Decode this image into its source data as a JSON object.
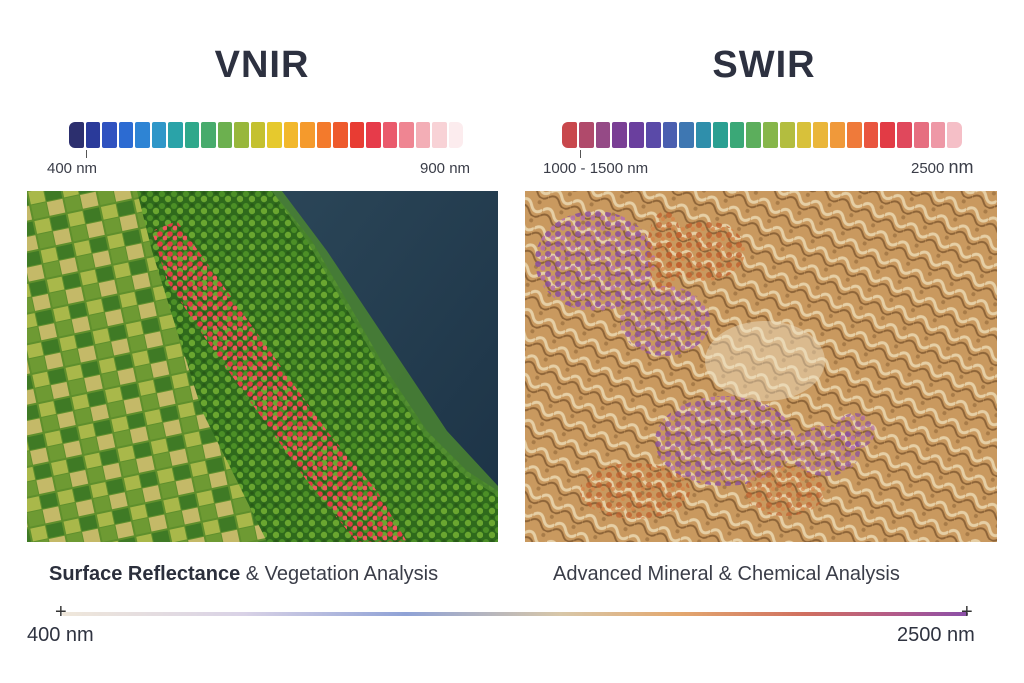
{
  "vnir": {
    "title": "VNIR",
    "scale_min": "400 nm",
    "scale_max": "900 nm",
    "colors": [
      "#2c2f6e",
      "#2a3a9a",
      "#2f52c0",
      "#2c6bd2",
      "#2e84d4",
      "#2f97c8",
      "#2aa3a8",
      "#2fa88b",
      "#47ab6c",
      "#6cb04f",
      "#98b73b",
      "#c4c12f",
      "#e6c92d",
      "#f2b82c",
      "#f59a2c",
      "#f37a2c",
      "#ee5a2c",
      "#e83c33",
      "#e63b4a",
      "#ea5a6c",
      "#ef8592",
      "#f3aeb6",
      "#f8d2d6",
      "#fcecee"
    ]
  },
  "swir": {
    "title": "SWIR",
    "scale_min": "1000 - 1500 nm",
    "scale_max_value": "2500",
    "scale_max_unit": "nm",
    "colors": [
      "#c8474c",
      "#b04a6b",
      "#954a86",
      "#7a3f95",
      "#6a3f9e",
      "#5a4aa8",
      "#4a5fb0",
      "#3e77b2",
      "#2f8fab",
      "#2aa092",
      "#3aa877",
      "#5cae5c",
      "#86b64a",
      "#b3bd3f",
      "#d8c13a",
      "#eab63a",
      "#f0993a",
      "#ef7a3a",
      "#e9553f",
      "#e23b45",
      "#e0485c",
      "#e66e80",
      "#ee98a6",
      "#f5bfc7"
    ]
  },
  "captions": {
    "vnir_bold": "Surface Reflectance",
    "vnir_rest": "& Vegetation Analysis",
    "swir": "Advanced Mineral & Chemical Analysis"
  },
  "spectrum": {
    "min": "400 nm",
    "max": "2500 nm"
  }
}
